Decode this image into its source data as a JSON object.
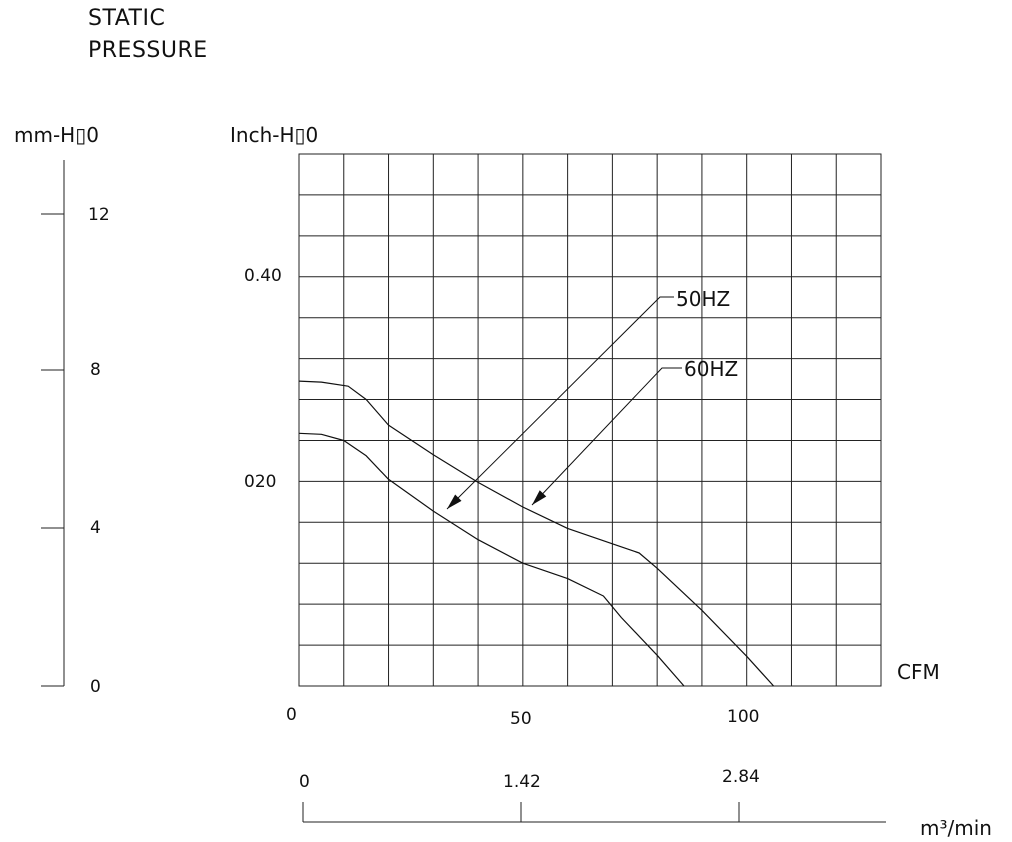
{
  "title_lines": [
    "STATIC",
    "PRESSURE"
  ],
  "left_axis": {
    "label": "mm-H▯0",
    "ticks": [
      "12",
      "8",
      "4",
      "0"
    ]
  },
  "y_axis": {
    "label": "Inch-H▯0",
    "ticks": [
      "0.40",
      "020"
    ]
  },
  "x_axis": {
    "label": "CFM",
    "ticks": [
      "0",
      "50",
      "100"
    ]
  },
  "m3_axis": {
    "label": "m³/min",
    "ticks": [
      "0",
      "1.42",
      "2.84"
    ]
  },
  "chart_data": {
    "type": "line",
    "xlabel": "CFM",
    "ylabel": "Inch-H▯0",
    "xlim": [
      0,
      130
    ],
    "ylim": [
      0,
      0.52
    ],
    "grid": true,
    "series": [
      {
        "name": "50HZ",
        "x": [
          0,
          5,
          11,
          15,
          20,
          30,
          40,
          50,
          60,
          70,
          76,
          80,
          90,
          100,
          106
        ],
        "y": [
          0.298,
          0.297,
          0.293,
          0.28,
          0.255,
          0.226,
          0.199,
          0.175,
          0.154,
          0.139,
          0.13,
          0.115,
          0.074,
          0.029,
          0
        ]
      },
      {
        "name": "60HZ",
        "x": [
          0,
          5,
          10,
          15,
          20,
          30,
          40,
          50,
          60,
          68,
          72,
          80,
          86
        ],
        "y": [
          0.247,
          0.246,
          0.24,
          0.225,
          0.202,
          0.171,
          0.143,
          0.12,
          0.105,
          0.088,
          0.067,
          0.03,
          0
        ]
      }
    ],
    "annotations": [
      "50HZ",
      "60HZ"
    ]
  }
}
